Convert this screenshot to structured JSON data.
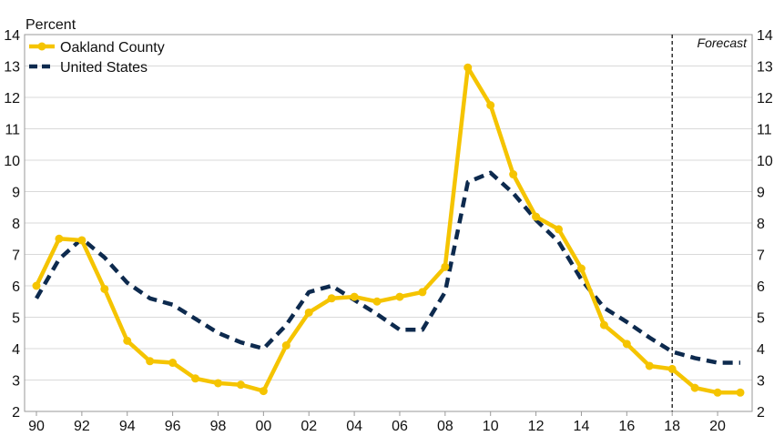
{
  "chart_data": {
    "type": "line",
    "title": "",
    "xlabel": "",
    "ylabel": "Percent",
    "xlim": [
      1990,
      2021
    ],
    "ylim": [
      2,
      14
    ],
    "y_ticks": [
      2,
      3,
      4,
      5,
      6,
      7,
      8,
      9,
      10,
      11,
      12,
      13,
      14
    ],
    "x_ticks": [
      1990,
      1992,
      1994,
      1996,
      1998,
      2000,
      2002,
      2004,
      2006,
      2008,
      2010,
      2012,
      2014,
      2016,
      2018,
      2020
    ],
    "x_tick_labels": [
      "90",
      "92",
      "94",
      "96",
      "98",
      "00",
      "02",
      "04",
      "06",
      "08",
      "10",
      "12",
      "14",
      "16",
      "18",
      "20"
    ],
    "grid": true,
    "legend_position": "top-left",
    "forecast_line_x": 2018,
    "annotation": "Forecast",
    "x": [
      1990,
      1991,
      1992,
      1993,
      1994,
      1995,
      1996,
      1997,
      1998,
      1999,
      2000,
      2001,
      2002,
      2003,
      2004,
      2005,
      2006,
      2007,
      2008,
      2009,
      2010,
      2011,
      2012,
      2013,
      2014,
      2015,
      2016,
      2017,
      2018,
      2019,
      2020,
      2021
    ],
    "series": [
      {
        "name": "Oakland County",
        "color": "#F5C400",
        "style": "solid-markers",
        "values": [
          6.0,
          7.5,
          7.45,
          5.9,
          4.25,
          3.6,
          3.55,
          3.05,
          2.9,
          2.85,
          2.65,
          4.1,
          5.15,
          5.6,
          5.65,
          5.5,
          5.65,
          5.8,
          6.6,
          12.95,
          11.75,
          9.55,
          8.2,
          7.8,
          6.55,
          4.75,
          4.15,
          3.45,
          3.35,
          2.75,
          2.6,
          2.6
        ]
      },
      {
        "name": "United States",
        "color": "#0D2A4E",
        "style": "dashed",
        "values": [
          5.6,
          6.85,
          7.5,
          6.9,
          6.1,
          5.6,
          5.4,
          4.95,
          4.5,
          4.2,
          4.0,
          4.75,
          5.8,
          6.0,
          5.55,
          5.1,
          4.6,
          4.6,
          5.8,
          9.3,
          9.6,
          8.95,
          8.1,
          7.4,
          6.2,
          5.3,
          4.85,
          4.35,
          3.9,
          3.7,
          3.55,
          3.55
        ]
      }
    ]
  }
}
